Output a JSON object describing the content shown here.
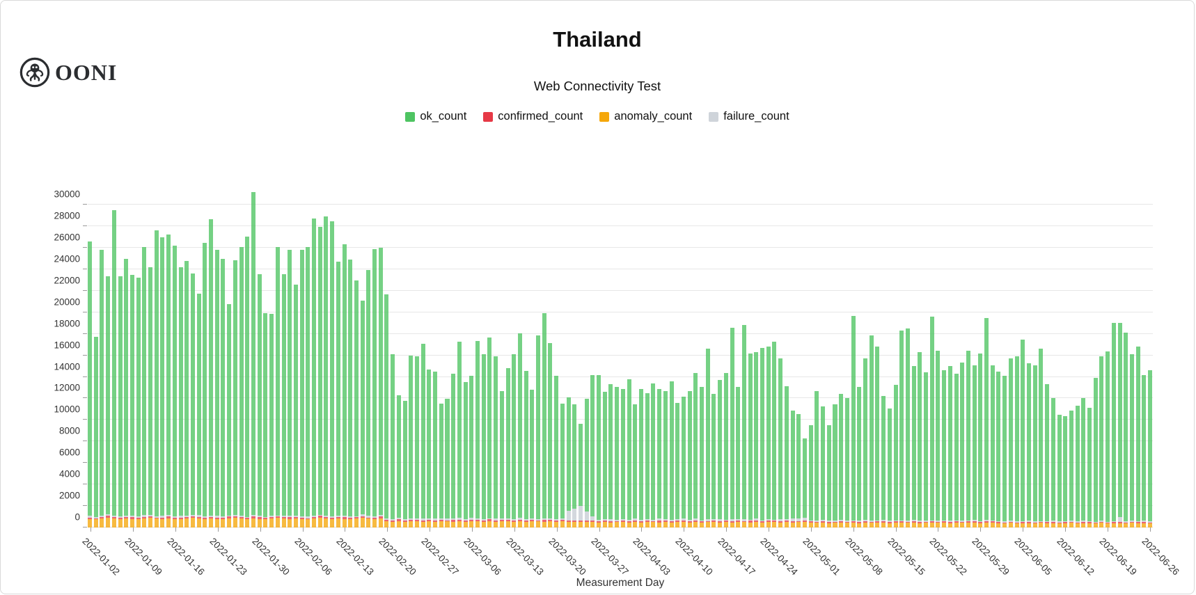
{
  "app": {
    "logo_text": "OONI"
  },
  "header": {
    "title": "Thailand",
    "subtitle": "Web Connectivity Test"
  },
  "chart_data": {
    "type": "bar",
    "stacked": true,
    "title": "Thailand",
    "subtitle": "Web Connectivity Test",
    "xlabel": "Measurement Day",
    "ylabel": "",
    "ylim": [
      0,
      31500
    ],
    "grid": true,
    "legend_position": "top",
    "y_ticks": [
      0,
      2000,
      4000,
      6000,
      8000,
      10000,
      12000,
      14000,
      16000,
      18000,
      20000,
      22000,
      24000,
      26000,
      28000,
      30000
    ],
    "x_tick_every": 7,
    "x_tick_labels": [
      "2022-01-02",
      "2022-01-09",
      "2022-01-16",
      "2022-01-23",
      "2022-01-30",
      "2022-02-06",
      "2022-02-13",
      "2022-02-20",
      "2022-02-27",
      "2022-03-06",
      "2022-03-13",
      "2022-03-20",
      "2022-03-27",
      "2022-04-03",
      "2022-04-10",
      "2022-04-17",
      "2022-04-24",
      "2022-05-01",
      "2022-05-08",
      "2022-05-15",
      "2022-05-22",
      "2022-05-29",
      "2022-06-05",
      "2022-06-12",
      "2022-06-19",
      "2022-06-26"
    ],
    "start_date": "2022-01-02",
    "end_date": "2022-06-26",
    "stack_order_bottom_to_top": [
      "anomaly_count",
      "confirmed_count",
      "failure_count",
      "ok_count"
    ],
    "series": [
      {
        "name": "ok_count",
        "color": "#4ec462",
        "values": [
          25520,
          16760,
          24710,
          22100,
          28420,
          22330,
          23880,
          22380,
          22220,
          24960,
          23030,
          26560,
          25870,
          26100,
          25180,
          23130,
          23710,
          22440,
          20610,
          25430,
          27560,
          24710,
          23900,
          19630,
          23680,
          25030,
          26060,
          29960,
          22440,
          18960,
          18730,
          24970,
          22480,
          24670,
          21480,
          24760,
          25080,
          27590,
          26780,
          27780,
          27400,
          23620,
          25200,
          23850,
          21930,
          19890,
          22880,
          24860,
          24820,
          20810,
          15330,
          11370,
          11010,
          15160,
          15070,
          16250,
          13850,
          13680,
          10670,
          11150,
          13470,
          16420,
          12750,
          13190,
          16520,
          15300,
          16780,
          15070,
          11870,
          13940,
          15310,
          17160,
          13740,
          11940,
          17060,
          19030,
          16280,
          13320,
          10650,
          10520,
          9670,
          7670,
          10470,
          13130,
          13470,
          11830,
          12520,
          12370,
          12110,
          13100,
          10620,
          12180,
          11720,
          12700,
          12080,
          11930,
          12890,
          10800,
          11330,
          12000,
          13530,
          12420,
          15790,
          11690,
          12950,
          13620,
          17750,
          12300,
          18050,
          15430,
          15450,
          16020,
          16000,
          16580,
          14920,
          12360,
          10060,
          9680,
          7400,
          8840,
          12010,
          10550,
          8860,
          10800,
          11700,
          11420,
          18970,
          12450,
          15060,
          17220,
          16130,
          11510,
          10420,
          12570,
          17630,
          17880,
          14270,
          15680,
          13740,
          18920,
          15740,
          13940,
          14340,
          13630,
          14640,
          15750,
          14400,
          15590,
          18790,
          14400,
          13910,
          13530,
          15120,
          15330,
          16860,
          14670,
          14490,
          16040,
          12770,
          11420,
          9940,
          9750,
          10230,
          10790,
          11430,
          10550,
          13350,
          15240,
          15800,
          18450,
          18030,
          17530,
          15480,
          16280,
          13580,
          14030
        ]
      },
      {
        "name": "confirmed_count",
        "color": "#e63946",
        "values": [
          130,
          110,
          150,
          170,
          120,
          130,
          110,
          150,
          170,
          120,
          130,
          110,
          150,
          170,
          120,
          130,
          110,
          150,
          170,
          120,
          130,
          110,
          150,
          170,
          120,
          130,
          110,
          150,
          170,
          120,
          130,
          110,
          150,
          170,
          120,
          130,
          110,
          150,
          170,
          120,
          130,
          110,
          150,
          170,
          120,
          130,
          110,
          150,
          170,
          140,
          120,
          160,
          140,
          120,
          160,
          140,
          120,
          160,
          140,
          120,
          160,
          140,
          120,
          160,
          140,
          120,
          160,
          140,
          120,
          160,
          140,
          120,
          160,
          140,
          120,
          160,
          140,
          120,
          160,
          160,
          160,
          160,
          160,
          120,
          100,
          140,
          120,
          100,
          140,
          120,
          100,
          140,
          120,
          100,
          140,
          120,
          100,
          140,
          120,
          100,
          140,
          120,
          100,
          140,
          120,
          100,
          140,
          120,
          100,
          140,
          120,
          100,
          140,
          120,
          100,
          140,
          120,
          100,
          140,
          110,
          90,
          130,
          110,
          90,
          130,
          110,
          90,
          130,
          110,
          90,
          130,
          110,
          90,
          130,
          110,
          90,
          130,
          110,
          90,
          130,
          110,
          90,
          130,
          110,
          90,
          130,
          110,
          90,
          130,
          110,
          100,
          80,
          120,
          100,
          80,
          120,
          100,
          80,
          120,
          100,
          80,
          120,
          100,
          80,
          120,
          100,
          80,
          120,
          100,
          80,
          120,
          100,
          80,
          120,
          100,
          80
        ]
      },
      {
        "name": "anomaly_count",
        "color": "#f5a70a",
        "values": [
          800,
          760,
          840,
          900,
          820,
          780,
          860,
          800,
          760,
          840,
          900,
          820,
          780,
          860,
          800,
          760,
          840,
          900,
          820,
          780,
          860,
          800,
          760,
          840,
          900,
          820,
          780,
          860,
          800,
          760,
          840,
          900,
          820,
          780,
          860,
          800,
          760,
          840,
          900,
          820,
          780,
          860,
          800,
          760,
          840,
          900,
          820,
          780,
          860,
          560,
          540,
          600,
          520,
          580,
          560,
          540,
          600,
          520,
          580,
          560,
          540,
          600,
          520,
          580,
          560,
          540,
          600,
          520,
          580,
          560,
          540,
          600,
          520,
          580,
          560,
          540,
          600,
          520,
          580,
          520,
          520,
          520,
          520,
          500,
          480,
          530,
          460,
          510,
          500,
          480,
          530,
          460,
          510,
          500,
          480,
          530,
          460,
          510,
          500,
          480,
          530,
          460,
          510,
          500,
          480,
          530,
          460,
          510,
          500,
          480,
          530,
          460,
          510,
          500,
          480,
          530,
          460,
          510,
          500,
          450,
          430,
          480,
          420,
          460,
          450,
          430,
          480,
          420,
          460,
          450,
          430,
          480,
          420,
          460,
          450,
          430,
          480,
          420,
          460,
          450,
          430,
          480,
          420,
          460,
          450,
          430,
          480,
          420,
          460,
          450,
          400,
          380,
          430,
          370,
          420,
          400,
          380,
          430,
          370,
          420,
          400,
          380,
          430,
          370,
          420,
          400,
          380,
          430,
          370,
          420,
          400,
          380,
          430,
          370,
          420,
          400
        ]
      },
      {
        "name": "failure_count",
        "color": "#cfd4da",
        "values": [
          150,
          120,
          100,
          180,
          140,
          110,
          150,
          120,
          100,
          180,
          140,
          110,
          150,
          120,
          100,
          180,
          140,
          110,
          150,
          120,
          100,
          180,
          140,
          110,
          150,
          120,
          100,
          180,
          140,
          110,
          150,
          120,
          100,
          180,
          140,
          110,
          150,
          120,
          100,
          180,
          140,
          110,
          150,
          120,
          100,
          180,
          140,
          110,
          150,
          140,
          110,
          170,
          130,
          140,
          110,
          170,
          130,
          140,
          110,
          170,
          130,
          140,
          110,
          170,
          130,
          140,
          110,
          170,
          130,
          140,
          110,
          170,
          130,
          140,
          110,
          170,
          130,
          140,
          110,
          900,
          1100,
          1300,
          800,
          400,
          150,
          100,
          200,
          120,
          150,
          100,
          200,
          120,
          150,
          100,
          200,
          120,
          150,
          100,
          200,
          120,
          150,
          100,
          200,
          120,
          150,
          100,
          200,
          120,
          150,
          100,
          200,
          120,
          150,
          100,
          200,
          120,
          260,
          260,
          260,
          100,
          120,
          90,
          110,
          100,
          120,
          90,
          110,
          100,
          120,
          90,
          110,
          100,
          120,
          90,
          110,
          100,
          120,
          90,
          110,
          100,
          120,
          90,
          110,
          100,
          120,
          90,
          110,
          100,
          120,
          90,
          90,
          110,
          80,
          100,
          90,
          110,
          80,
          100,
          90,
          110,
          80,
          100,
          90,
          110,
          80,
          100,
          90,
          110,
          80,
          100,
          450,
          90,
          110,
          80,
          100,
          90
        ]
      }
    ]
  },
  "colors": {
    "ok": "#4ec462",
    "confirmed": "#e63946",
    "anomaly": "#f5a70a",
    "failure": "#cfd4da",
    "grid": "#e7e7e7",
    "axis_text": "#333333"
  }
}
